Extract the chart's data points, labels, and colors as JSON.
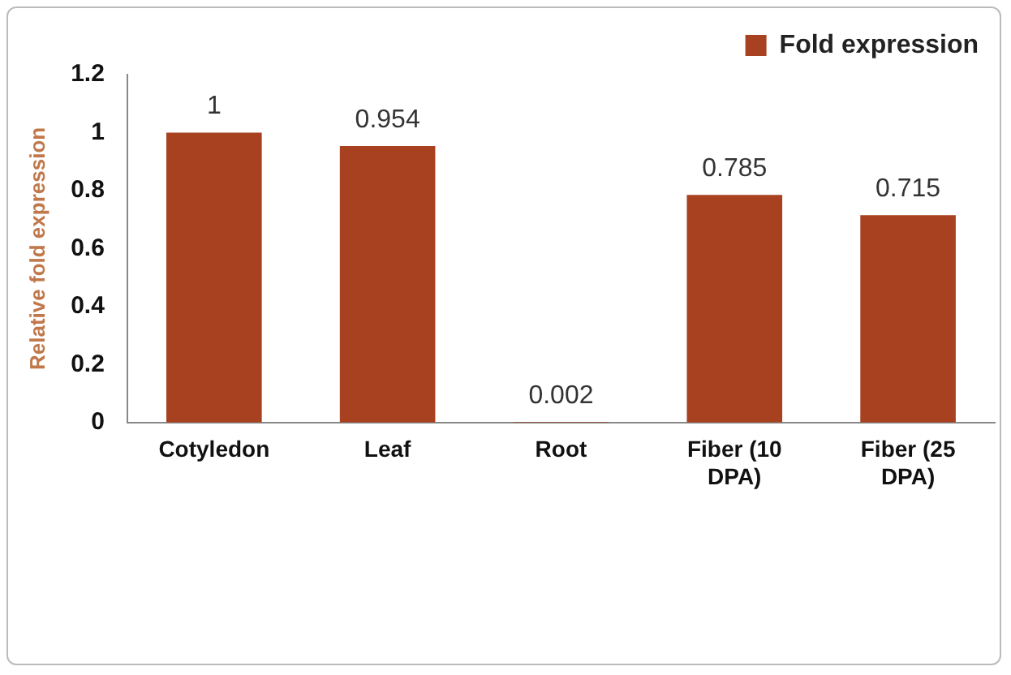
{
  "chart_data": {
    "type": "bar",
    "ylabel": "Relative fold expression",
    "categories": [
      "Cotyledon",
      "Leaf",
      "Root",
      "Fiber (10 DPA)",
      "Fiber (25 DPA)"
    ],
    "series": [
      {
        "name": "Fold expression",
        "color": "#a8411f",
        "values": [
          1,
          0.954,
          0.002,
          0.785,
          0.715
        ]
      }
    ],
    "ylim": [
      0,
      1.2
    ],
    "yticks": [
      0,
      0.2,
      0.4,
      0.6,
      0.8,
      1,
      1.2
    ],
    "grid": false,
    "legend": "top right",
    "data_labels": true
  }
}
